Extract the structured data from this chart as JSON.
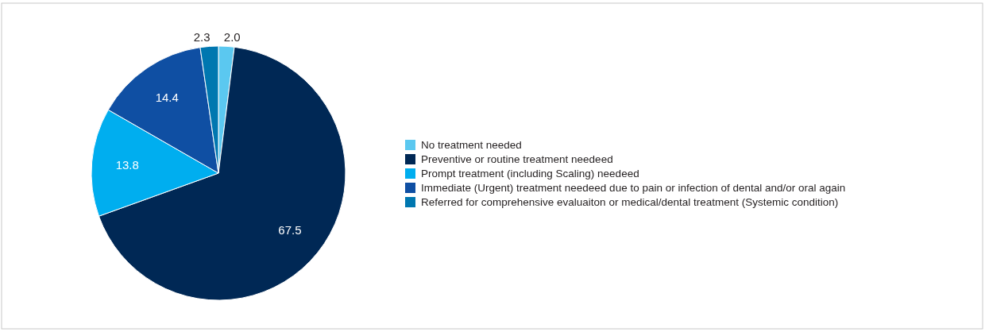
{
  "chart_data": {
    "type": "pie",
    "categories": [
      "No treatment needed",
      "Preventive or routine treatment needeed",
      "Prompt treatment (including Scaling) needeed",
      "Immediate (Urgent) treatment needeed due to pain or infection of dental and/or oral again",
      "Referred for comprehensive evaluaiton or medical/dental treatment (Systemic condition)"
    ],
    "values": [
      2.0,
      67.5,
      13.8,
      14.4,
      2.3
    ],
    "colors": [
      "#5bc8f0",
      "#002855",
      "#00aeef",
      "#0f4fa3",
      "#0077b0"
    ],
    "value_labels": [
      "2.0",
      "67.5",
      "13.8",
      "14.4",
      "2.3"
    ],
    "legend": "right"
  }
}
